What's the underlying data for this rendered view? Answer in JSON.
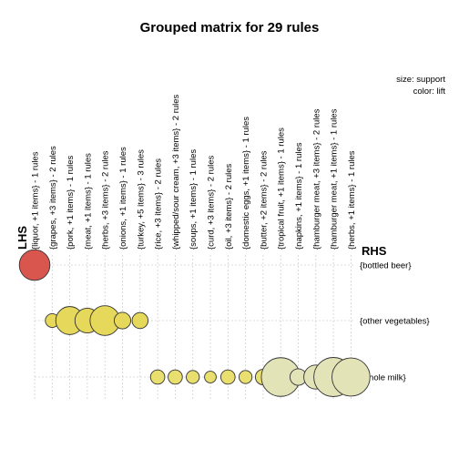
{
  "chart_data": {
    "type": "scatter",
    "title": "Grouped matrix for 29 rules",
    "xlabel": "LHS",
    "ylabel": "RHS",
    "legend": {
      "size": "size: support",
      "color": "color: lift",
      "placement": "top-right"
    },
    "grid": true,
    "lhs_groups": [
      "{liquor, +1 items} - 1 rules",
      "{grapes, +3 items} - 2 rules",
      "{pork, +1 items} - 1 rules",
      "{meat, +1 items} - 1 rules",
      "{herbs, +3 items} - 2 rules",
      "{onions, +1 items} - 1 rules",
      "{turkey, +5 items} - 3 rules",
      "{rice, +3 items} - 2 rules",
      "{whipped/sour cream, +3 items} - 2 rules",
      "{soups, +1 items} - 1 rules",
      "{curd, +3 items} - 2 rules",
      "{oil, +3 items} - 2 rules",
      "{domestic eggs, +1 items} - 1 rules",
      "{butter, +2 items} - 2 rules",
      "{tropical fruit, +1 items} - 1 rules",
      "{napkins, +1 items} - 1 rules",
      "{hamburger meat, +3 items} - 2 rules",
      "{hamburger meat, +1 items} - 1 rules",
      "{herbs, +1 items} - 1 rules"
    ],
    "rhs_items": [
      "{bottled beer}",
      "{other vegetables}",
      "{whole milk}"
    ],
    "points": [
      {
        "lhs": 0,
        "rhs": 0,
        "support": 0.0055,
        "lift": 5.0,
        "color": "#d9564f"
      },
      {
        "lhs": 1,
        "rhs": 1,
        "support": 0.0011,
        "lift": 4.2,
        "color": "#e6d85a"
      },
      {
        "lhs": 2,
        "rhs": 1,
        "support": 0.0046,
        "lift": 4.2,
        "color": "#e6d85a"
      },
      {
        "lhs": 3,
        "rhs": 1,
        "support": 0.0036,
        "lift": 4.2,
        "color": "#e6d85a"
      },
      {
        "lhs": 4,
        "rhs": 1,
        "support": 0.0052,
        "lift": 4.2,
        "color": "#e6d85a"
      },
      {
        "lhs": 5,
        "rhs": 1,
        "support": 0.0016,
        "lift": 4.2,
        "color": "#e6d85a"
      },
      {
        "lhs": 6,
        "rhs": 1,
        "support": 0.0015,
        "lift": 4.2,
        "color": "#e6d85a"
      },
      {
        "lhs": 7,
        "rhs": 2,
        "support": 0.0012,
        "lift": 3.9,
        "color": "#e8df6e"
      },
      {
        "lhs": 8,
        "rhs": 2,
        "support": 0.0012,
        "lift": 3.9,
        "color": "#e8df6e"
      },
      {
        "lhs": 9,
        "rhs": 2,
        "support": 0.001,
        "lift": 3.9,
        "color": "#e8df6e"
      },
      {
        "lhs": 10,
        "rhs": 2,
        "support": 0.0008,
        "lift": 3.9,
        "color": "#e8df6e"
      },
      {
        "lhs": 11,
        "rhs": 2,
        "support": 0.0012,
        "lift": 3.9,
        "color": "#e8df6e"
      },
      {
        "lhs": 12,
        "rhs": 2,
        "support": 0.001,
        "lift": 3.9,
        "color": "#e8df6e"
      },
      {
        "lhs": 13,
        "rhs": 2,
        "support": 0.0014,
        "lift": 3.9,
        "color": "#e8df6e"
      },
      {
        "lhs": 14,
        "rhs": 2,
        "support": 0.0088,
        "lift": 3.1,
        "color": "#e3e3b8"
      },
      {
        "lhs": 15,
        "rhs": 2,
        "support": 0.0016,
        "lift": 3.1,
        "color": "#e3e3b8"
      },
      {
        "lhs": 16,
        "rhs": 2,
        "support": 0.0034,
        "lift": 3.1,
        "color": "#e3e3b8"
      },
      {
        "lhs": 17,
        "rhs": 2,
        "support": 0.009,
        "lift": 3.1,
        "color": "#e3e3b8"
      },
      {
        "lhs": 18,
        "rhs": 2,
        "support": 0.0085,
        "lift": 3.1,
        "color": "#e3e3b8"
      }
    ]
  }
}
